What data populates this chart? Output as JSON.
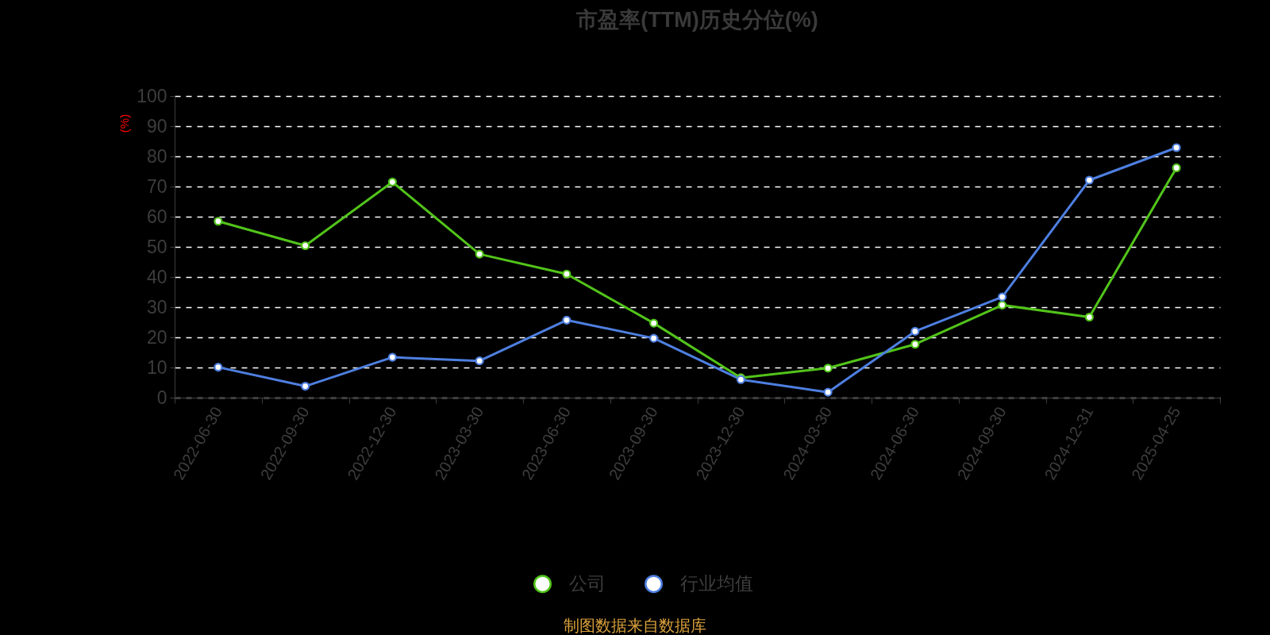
{
  "chart_data": {
    "type": "line",
    "title": "市盈率(TTM)历史分位(%)",
    "ylabel": "(%)",
    "categories": [
      "2022-06-30",
      "2022-09-30",
      "2022-12-30",
      "2023-03-30",
      "2023-06-30",
      "2023-09-30",
      "2023-12-30",
      "2024-03-30",
      "2024-06-30",
      "2024-09-30",
      "2024-12-31",
      "2025-04-25"
    ],
    "series": [
      {
        "name": "公司",
        "color": "#52c41a",
        "values": [
          58.5,
          50.4,
          71.5,
          47.6,
          41.0,
          24.7,
          6.6,
          9.8,
          17.7,
          30.7,
          26.7,
          76.2
        ]
      },
      {
        "name": "行业均值",
        "color": "#4e7fe0",
        "values": [
          10.1,
          3.8,
          13.4,
          12.2,
          25.7,
          19.7,
          6.0,
          1.8,
          22.0,
          33.4,
          72.1,
          82.9
        ]
      }
    ],
    "ylim": [
      0,
      100
    ],
    "yticks": [
      0,
      10,
      20,
      30,
      40,
      50,
      60,
      70,
      80,
      90,
      100
    ],
    "grid": "y",
    "legend": "bottom",
    "marker": "circle",
    "line_style": "solid",
    "annotations": [
      "制图数据来自数据库"
    ]
  }
}
